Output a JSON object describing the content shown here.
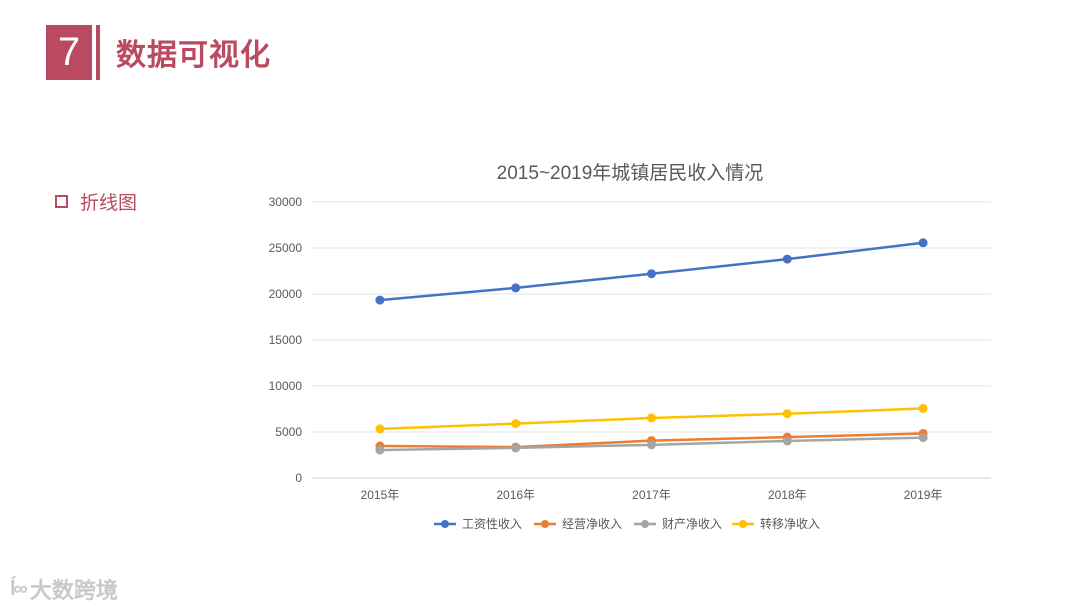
{
  "header": {
    "number": "7",
    "title": "数据可视化"
  },
  "section": {
    "label": "折线图"
  },
  "watermark": {
    "logo_text": "ĺ∞",
    "text": "大数跨境"
  },
  "colors": {
    "accent": "#b94a5f",
    "wage": "#4472c4",
    "business": "#ed7d31",
    "property": "#a5a5a5",
    "transfer": "#ffc000"
  },
  "chart_data": {
    "type": "line",
    "title": "2015~2019年城镇居民收入情况",
    "categories": [
      "2015年",
      "2016年",
      "2017年",
      "2018年",
      "2019年"
    ],
    "ylim": [
      0,
      30000
    ],
    "yticks": [
      "0",
      "5000",
      "10000",
      "15000",
      "20000",
      "25000",
      "30000"
    ],
    "grid": true,
    "legend_position": "bottom",
    "series": [
      {
        "name": "工资性收入",
        "color": "#4472c4",
        "values": [
          19337,
          20665,
          22201,
          23792,
          25565
        ]
      },
      {
        "name": "经营净收入",
        "color": "#ed7d31",
        "values": [
          3476,
          3359,
          4065,
          4443,
          4840
        ]
      },
      {
        "name": "财产净收入",
        "color": "#a5a5a5",
        "values": [
          3042,
          3271,
          3607,
          4028,
          4391
        ]
      },
      {
        "name": "转移净收入",
        "color": "#ffc000",
        "values": [
          5340,
          5910,
          6524,
          6988,
          7563
        ]
      }
    ]
  }
}
